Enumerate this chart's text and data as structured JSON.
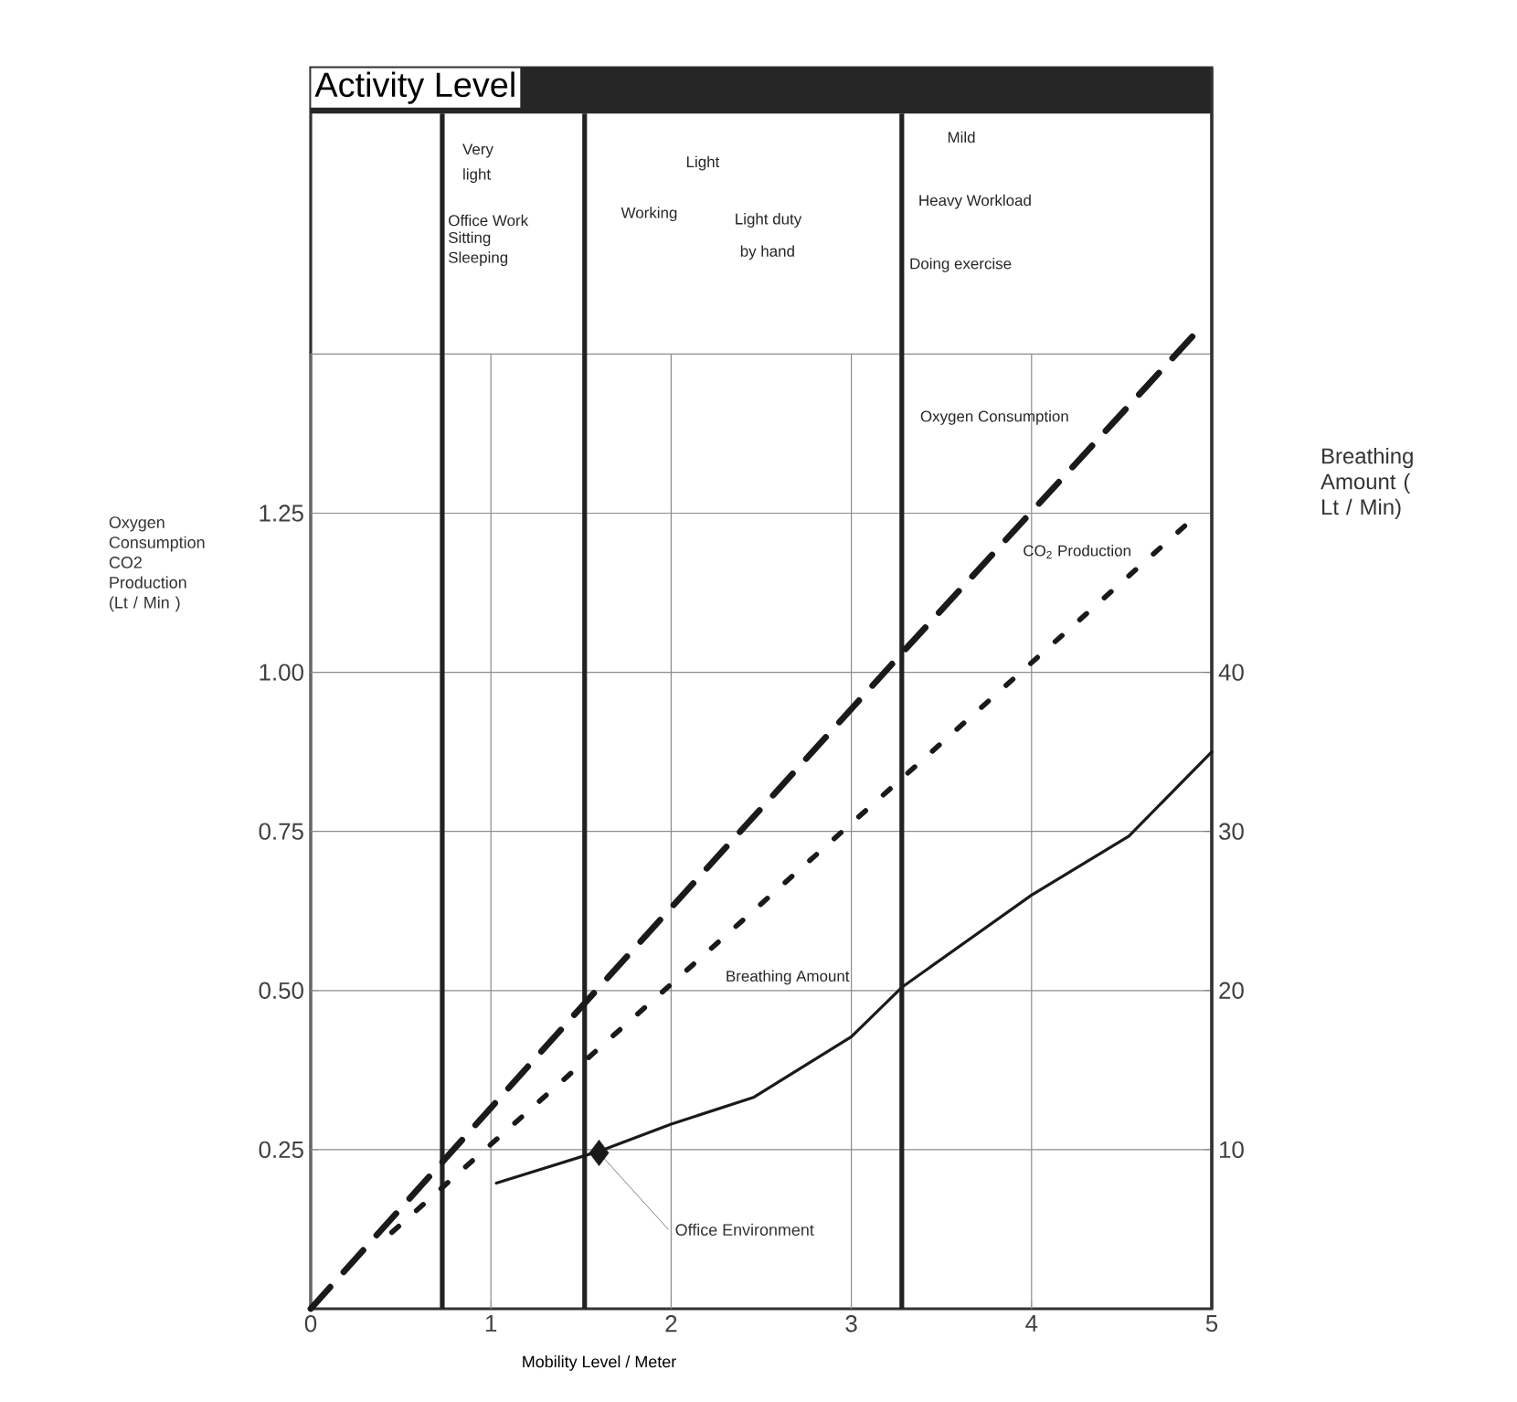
{
  "chart_data": {
    "type": "line",
    "xlabel": "Mobility Level / Meter",
    "ylabel": "Oxygen Consumption CO2 Production (Lt / Min )",
    "y2label": "Breathing Amount ( Lt / Min)",
    "xlim": [
      0,
      5
    ],
    "ylim": [
      0,
      1.95
    ],
    "y2lim": [
      0,
      78
    ],
    "xticks": [
      0,
      1,
      2,
      3,
      4,
      5
    ],
    "yticks": [
      {
        "value": 0.25,
        "label": "0.25"
      },
      {
        "value": 0.5,
        "label": "0.50"
      },
      {
        "value": 0.75,
        "label": "0.75"
      },
      {
        "value": 1.0,
        "label": "1.00"
      },
      {
        "value": 1.25,
        "label": "1.25"
      },
      {
        "value": 1.5,
        "label": null
      }
    ],
    "y2ticks": [
      10,
      20,
      30,
      40
    ],
    "grid": true,
    "series": [
      {
        "color": "#1a1a1a",
        "line_style": "dashed",
        "x": [
          0,
          1.52,
          3.28,
          4.9
        ],
        "values": [
          0,
          0.48,
          1.03,
          1.53
        ]
      },
      {
        "color": "#1a1a1a",
        "line_style": "dotted",
        "x": [
          0.45,
          2.0,
          4.93
        ],
        "values": [
          0.12,
          0.51,
          1.25
        ]
      },
      {
        "color": "#1a1a1a",
        "line_style": "solid",
        "axis": "y2",
        "x": [
          1.03,
          1.6,
          2.0,
          2.46,
          3.0,
          3.28,
          4.0,
          4.54,
          5.0
        ],
        "values": [
          7.9,
          9.9,
          11.6,
          13.3,
          17.1,
          20.2,
          26.0,
          29.7,
          35.0
        ]
      },
      {
        "type": "scatter",
        "name": "Office Environment",
        "color": "#1a1a1a",
        "marker": "diamond",
        "axis": "y2",
        "x": [
          1.6
        ],
        "values": [
          9.8
        ]
      }
    ],
    "bands": [
      {
        "axis": "y",
        "from": 1.878,
        "to": 1.95,
        "label": "Activity Level",
        "color": "#262626"
      }
    ],
    "ref_lines": [
      {
        "axis": "x",
        "value": 0.73,
        "color": "#222222"
      },
      {
        "axis": "x",
        "value": 1.52,
        "color": "#222222"
      },
      {
        "axis": "x",
        "value": 3.28,
        "color": "#222222"
      }
    ],
    "annotations": [
      "Very",
      "light",
      "Office Work",
      "Sitting",
      "Sleeping",
      "Light",
      "Working",
      "Light duty",
      "by hand",
      "Mild",
      "Heavy Workload",
      "Doing exercise",
      "Oxygen Consumption",
      "CO$_{2}$ Production",
      "Breathing Amount"
    ]
  }
}
